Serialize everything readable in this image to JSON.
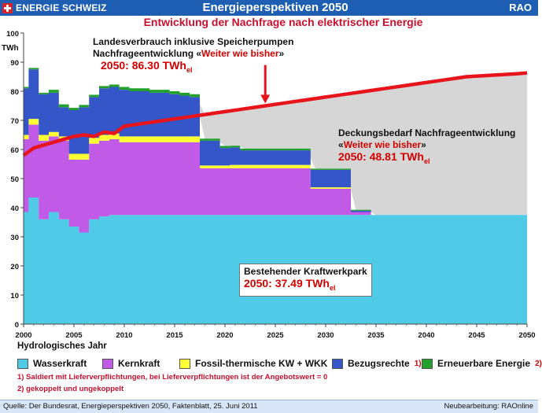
{
  "header": {
    "brand": "ENERGIE SCHWEIZ",
    "title": "Energieperspektiven 2050",
    "corner": "RAO"
  },
  "chart_title": "Entwicklung der Nachfrage nach elektrischer Energie",
  "annotations": {
    "demand": {
      "line1": "Landesverbrauch inklusive Speicherpumpen",
      "line2_prefix": "Nachfrageentwicklung «",
      "line2_red": "Weiter wie bisher",
      "line2_suffix": "»",
      "value_label": "2050: 86.30 TWh",
      "value_sub": "el"
    },
    "coverage": {
      "line1": "Deckungsbedarf  Nachfrageentwicklung",
      "line2_prefix": "«",
      "line2_red": "Weiter wie bisher",
      "line2_suffix": "»",
      "value_label": "2050: 48.81 TWh",
      "value_sub": "el"
    },
    "existing": {
      "line1": "Bestehender Kraftwerkpark",
      "value_label": "2050: 37.49 TWh",
      "value_sub": "el"
    }
  },
  "legend": {
    "items": [
      {
        "label": "Wasserkraft",
        "color": "#4fcbe7",
        "note": ""
      },
      {
        "label": "Kernkraft",
        "color": "#c25ae8",
        "note": ""
      },
      {
        "label": "Fossil-thermische KW + WKK",
        "color": "#ffff33",
        "note": ""
      },
      {
        "label": "Bezugsrechte",
        "color": "#3456c8",
        "note": "1)"
      },
      {
        "label": "Erneuerbare Energie",
        "color": "#22a02c",
        "note": "2)"
      }
    ],
    "notes": [
      "1) Saldiert mit Lieferverpflichtungen, bei Lieferverpflichtungen ist der Angebotswert = 0",
      "2) gekoppelt und ungekoppelt"
    ]
  },
  "footer": {
    "source": "Quelle: Der Bundesrat, Energieperspektiven 2050, Faktenblatt, 25. Juni 2011",
    "credit": "Neubearbeitung: RAOnline"
  },
  "chart_data": {
    "type": "area",
    "title": "Entwicklung der Nachfrage nach elektrischer Energie",
    "xlabel": "Hydrologisches Jahr",
    "ylabel": "TWh",
    "xlim": [
      2000,
      2050
    ],
    "ylim": [
      0,
      100
    ],
    "xticks": [
      2000,
      2005,
      2010,
      2015,
      2020,
      2025,
      2030,
      2035,
      2040,
      2045,
      2050
    ],
    "yticks": [
      0,
      10,
      20,
      30,
      40,
      50,
      60,
      70,
      80,
      90,
      100
    ],
    "grid": false,
    "x": [
      2000,
      2001,
      2002,
      2003,
      2004,
      2005,
      2006,
      2007,
      2008,
      2009,
      2010,
      2011,
      2012,
      2013,
      2014,
      2015,
      2016,
      2017,
      2018,
      2019,
      2020,
      2021,
      2022,
      2023,
      2024,
      2025,
      2026,
      2027,
      2028,
      2029,
      2030,
      2031,
      2032,
      2033,
      2034,
      2035,
      2036,
      2037,
      2038,
      2039,
      2040,
      2041,
      2042,
      2043,
      2044,
      2045,
      2046,
      2047,
      2048,
      2049,
      2050
    ],
    "series": [
      {
        "name": "Wasserkraft",
        "color": "#4fcbe7",
        "values": [
          38.5,
          43.5,
          36,
          38.5,
          36,
          33.5,
          31.5,
          36,
          37,
          37.5,
          37.5,
          37.5,
          37.5,
          37.5,
          37.5,
          37.5,
          37.5,
          37.5,
          37.5,
          37.5,
          37.5,
          37.5,
          37.5,
          37.5,
          37.5,
          37.5,
          37.5,
          37.5,
          37.5,
          37.5,
          37.5,
          37.5,
          37.5,
          37.5,
          37.5,
          37.5,
          37.5,
          37.5,
          37.5,
          37.5,
          37.5,
          37.5,
          37.5,
          37.5,
          37.5,
          37.5,
          37.5,
          37.5,
          37.5,
          37.5,
          37.5
        ]
      },
      {
        "name": "Kernkraft",
        "color": "#c25ae8",
        "values": [
          25,
          25,
          27,
          26,
          27,
          23,
          25,
          26,
          26,
          26,
          25,
          25,
          25,
          25,
          25,
          25,
          25,
          25,
          16,
          16,
          16,
          16,
          16,
          16,
          16,
          16,
          16,
          16,
          16,
          9,
          9,
          9,
          9,
          1,
          1,
          0,
          0,
          0,
          0,
          0,
          0,
          0,
          0,
          0,
          0,
          0,
          0,
          0,
          0,
          0,
          0
        ]
      },
      {
        "name": "Fossil-thermische KW + WKK",
        "color": "#ffff33",
        "values": [
          1.5,
          2,
          2,
          1.5,
          1.5,
          2,
          2,
          2,
          2,
          2,
          2,
          2,
          2,
          2,
          2,
          2,
          2,
          2,
          1,
          1,
          1,
          1.2,
          1.2,
          1.2,
          1.2,
          1.2,
          1.2,
          1.2,
          1.2,
          0.5,
          0.5,
          0.5,
          0.5,
          0,
          0,
          0,
          0,
          0,
          0,
          0,
          0,
          0,
          0,
          0,
          0,
          0,
          0,
          0,
          0,
          0,
          0
        ]
      },
      {
        "name": "Bezugsrechte",
        "color": "#3456c8",
        "values": [
          16,
          17,
          14,
          13.5,
          10,
          15,
          16,
          14,
          16,
          16,
          16,
          15.5,
          15.5,
          15,
          15,
          14.5,
          14,
          13.5,
          8.5,
          8.5,
          6,
          6,
          5,
          5,
          5,
          5,
          5,
          5,
          5,
          6,
          6,
          6,
          6,
          0.5,
          0.5,
          0,
          0,
          0,
          0,
          0,
          0,
          0,
          0,
          0,
          0,
          0,
          0,
          0,
          0,
          0,
          0
        ]
      },
      {
        "name": "Erneuerbare Energie",
        "color": "#22a02c",
        "values": [
          0.5,
          0.5,
          0.5,
          1,
          1,
          0.8,
          0.8,
          0.8,
          0.8,
          0.8,
          1,
          1,
          1,
          1,
          1,
          1,
          1,
          1,
          0.7,
          0.7,
          0.7,
          0.6,
          0.6,
          0.6,
          0.6,
          0.6,
          0.6,
          0.6,
          0.6,
          0.4,
          0.4,
          0.4,
          0.4,
          0.3,
          0.3,
          0,
          0,
          0,
          0,
          0,
          0,
          0,
          0,
          0,
          0,
          0,
          0,
          0,
          0,
          0,
          0
        ]
      },
      {
        "name": "Landesverbrauch inklusive Speicherpumpen",
        "type": "line",
        "color": "#e8141c",
        "values": [
          58,
          60.5,
          61.5,
          62.5,
          63.5,
          64.5,
          65,
          64.5,
          66,
          65.5,
          68,
          68.5,
          69,
          69.5,
          70,
          70.5,
          71,
          71.5,
          72,
          72.5,
          73,
          73.5,
          74,
          74.5,
          75,
          75.5,
          76,
          76.5,
          77,
          77.5,
          78,
          78.5,
          79,
          79.5,
          80,
          80.5,
          81,
          81.5,
          82,
          82.5,
          83,
          83.5,
          84,
          84.5,
          85,
          85.2,
          85.4,
          85.6,
          85.8,
          86,
          86.3
        ]
      }
    ],
    "values_2050": {
      "demand": 86.3,
      "coverage_gap": 48.81,
      "existing_plants": 37.49
    }
  }
}
